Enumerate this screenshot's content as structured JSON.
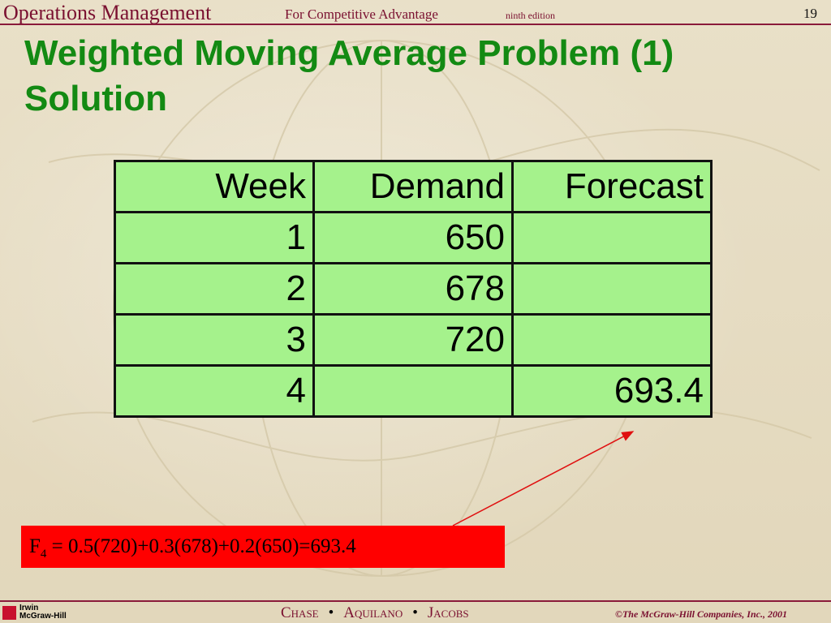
{
  "header": {
    "book_title": "Operations Management",
    "book_subtitle": "For Competitive Advantage",
    "edition": "ninth edition",
    "page_number": "19"
  },
  "title": {
    "line1": "Weighted Moving Average Problem (1)",
    "line2": "Solution"
  },
  "table": {
    "headers": [
      "Week",
      "Demand",
      "Forecast"
    ],
    "rows": [
      [
        "1",
        "650",
        ""
      ],
      [
        "2",
        "678",
        ""
      ],
      [
        "3",
        "720",
        ""
      ],
      [
        "4",
        "",
        "693.4"
      ]
    ]
  },
  "formula": {
    "lhs": "F",
    "subscript": "4",
    "rhs": " = 0.5(720)+0.3(678)+0.2(650)=693.4"
  },
  "footer": {
    "logo_line1": "Irwin",
    "logo_line2": "McGraw-Hill",
    "authors": [
      "Chase",
      "Aquilano",
      "Jacobs"
    ],
    "separator": "•",
    "copyright": "©The McGraw-Hill Companies, Inc., 2001"
  },
  "colors": {
    "title_green": "#138a13",
    "table_fill": "#a5f28c",
    "formula_box": "#ff0000",
    "accent_maroon": "#7a1030"
  }
}
